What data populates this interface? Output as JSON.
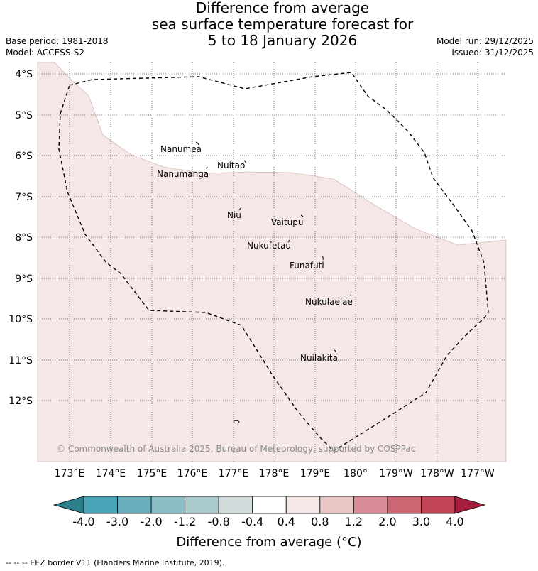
{
  "title": {
    "line1": "Difference from average",
    "line2": "sea surface temperature forecast for",
    "line3": "5 to 18 January 2026"
  },
  "meta": {
    "base_period": "Base period: 1981-2018",
    "model": "Model: ACCESS-S2",
    "model_run": "Model run: 29/12/2025",
    "issued": "Issued: 31/12/2025"
  },
  "map": {
    "lat_labels": [
      "4°S",
      "5°S",
      "6°S",
      "7°S",
      "8°S",
      "9°S",
      "10°S",
      "11°S",
      "12°S"
    ],
    "lon_labels": [
      "173°E",
      "174°E",
      "175°E",
      "176°E",
      "177°E",
      "178°E",
      "179°E",
      "180°",
      "179°W",
      "178°W",
      "177°W"
    ],
    "islands": [
      {
        "name": "Nanumea"
      },
      {
        "name": "Nuitao"
      },
      {
        "name": "Nanumanga"
      },
      {
        "name": "Niu"
      },
      {
        "name": "Vaitupu"
      },
      {
        "name": "Nukufetau"
      },
      {
        "name": "Funafuti"
      },
      {
        "name": "Nukulaelae"
      },
      {
        "name": "Nuilakita"
      }
    ],
    "copyright": "© Commonwealth of Australia 2025, Bureau of Meteorology, supported by COSPPac",
    "colors": {
      "anomaly_fill": "#f4e7e5",
      "background": "#ffffff",
      "grid": "#555555"
    }
  },
  "colorbar": {
    "ticks": [
      "-4.0",
      "-3.0",
      "-2.0",
      "-1.2",
      "-0.8",
      "-0.4",
      "0.4",
      "0.8",
      "1.2",
      "2.0",
      "3.0",
      "4.0"
    ],
    "colors": [
      "#2e7f8c",
      "#4aa4b7",
      "#6aaebb",
      "#8bbdc6",
      "#a9c9cc",
      "#d2dbdc",
      "#ffffff",
      "#f4e7e5",
      "#e8c6c3",
      "#d98e97",
      "#cb6673",
      "#c14556",
      "#a71d3e"
    ],
    "label": "Difference from average (°C)"
  },
  "footer": "--  --  -- EEZ border V11 (Flanders Marine Institute, 2019)."
}
